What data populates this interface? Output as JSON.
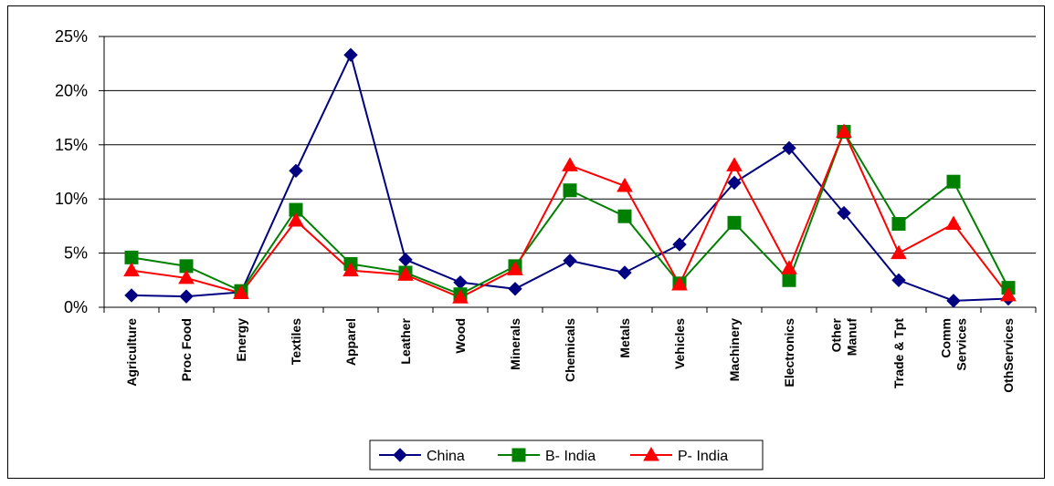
{
  "chart_data": {
    "type": "line",
    "categories": [
      "Agriculture",
      "Proc Food",
      "Energy",
      "Textiles",
      "Apparel",
      "Leather",
      "Wood",
      "Minerals",
      "Chemicals",
      "Metals",
      "Vehicles",
      "Machinery",
      "Electronics",
      "Other Manuf",
      "Trade & Tpt",
      "Comm Services",
      "OthServices"
    ],
    "category_lines": [
      [
        "Agriculture"
      ],
      [
        "Proc Food"
      ],
      [
        "Energy"
      ],
      [
        "Textiles"
      ],
      [
        "Apparel"
      ],
      [
        "Leather"
      ],
      [
        "Wood"
      ],
      [
        "Minerals"
      ],
      [
        "Chemicals"
      ],
      [
        "Metals"
      ],
      [
        "Vehicles"
      ],
      [
        "Machinery"
      ],
      [
        "Electronics"
      ],
      [
        "Other",
        "Manuf"
      ],
      [
        "Trade & Tpt"
      ],
      [
        "Comm",
        "Services"
      ],
      [
        "OthServices"
      ]
    ],
    "series": [
      {
        "name": "China",
        "color": "#000080",
        "marker": "diamond",
        "values": [
          1.1,
          1.0,
          1.4,
          12.6,
          23.3,
          4.4,
          2.3,
          1.7,
          4.3,
          3.2,
          5.8,
          11.5,
          14.7,
          8.7,
          2.5,
          0.6,
          0.8
        ]
      },
      {
        "name": "B- India",
        "color": "#008000",
        "marker": "square",
        "values": [
          4.6,
          3.8,
          1.5,
          9.0,
          4.0,
          3.2,
          1.2,
          3.8,
          10.8,
          8.4,
          2.2,
          7.8,
          2.5,
          16.2,
          7.7,
          11.6,
          1.8
        ]
      },
      {
        "name": "P- India",
        "color": "#ff0000",
        "marker": "triangle",
        "values": [
          3.4,
          2.7,
          1.3,
          8.0,
          3.4,
          3.0,
          0.9,
          3.5,
          13.1,
          11.2,
          2.1,
          13.1,
          3.6,
          16.2,
          5.0,
          7.7,
          1.1
        ]
      }
    ],
    "ylim": [
      0,
      25
    ],
    "yticks": [
      0,
      5,
      10,
      15,
      20,
      25
    ],
    "ytick_labels": [
      "0%",
      "5%",
      "10%",
      "15%",
      "20%",
      "25%"
    ],
    "grid": true,
    "legend_position": "bottom",
    "title": "",
    "xlabel": "",
    "ylabel": ""
  }
}
